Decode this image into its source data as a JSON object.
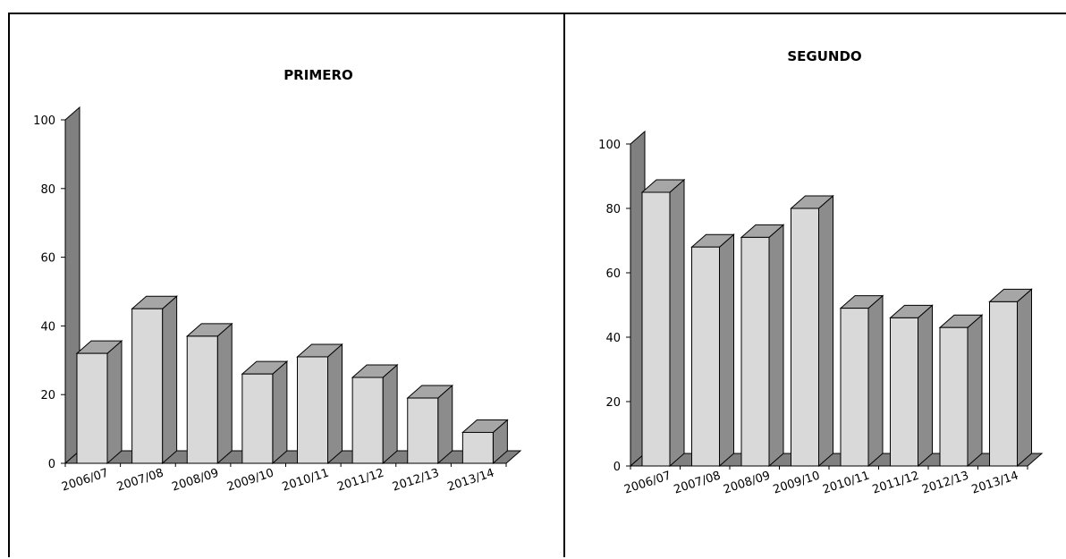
{
  "chart_data": [
    {
      "type": "bar",
      "title": "PRIMERO",
      "categories": [
        "2006/07",
        "2007/08",
        "2008/09",
        "2009/10",
        "2010/11",
        "2011/12",
        "2012/13",
        "2013/14"
      ],
      "values": [
        32,
        45,
        37,
        26,
        31,
        25,
        19,
        9
      ],
      "ylim": [
        0,
        100
      ],
      "yticks": [
        0,
        20,
        40,
        60,
        80,
        100
      ],
      "legend": "none",
      "style": "3d-column",
      "colors": {
        "bar_front": "#d9d9d9",
        "bar_side": "#8c8c8c",
        "bar_top": "#a6a6a6",
        "wall": "#808080"
      }
    },
    {
      "type": "bar",
      "title": "SEGUNDO",
      "categories": [
        "2006/07",
        "2007/08",
        "2008/09",
        "2009/10",
        "2010/11",
        "2011/12",
        "2012/13",
        "2013/14"
      ],
      "values": [
        85,
        68,
        71,
        80,
        49,
        46,
        43,
        51
      ],
      "ylim": [
        0,
        100
      ],
      "yticks": [
        0,
        20,
        40,
        60,
        80,
        100
      ],
      "legend": "none",
      "style": "3d-column",
      "colors": {
        "bar_front": "#d9d9d9",
        "bar_side": "#8c8c8c",
        "bar_top": "#a6a6a6",
        "wall": "#808080"
      }
    }
  ]
}
